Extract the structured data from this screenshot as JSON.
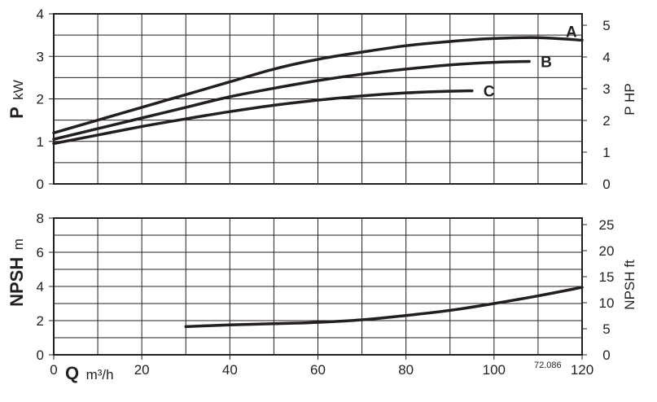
{
  "chart_data": [
    {
      "type": "line",
      "ylabel_bold": "P",
      "ylabel_unit": "kW",
      "y2label": "P HP",
      "xlim": [
        0,
        120
      ],
      "ylim": [
        0,
        4
      ],
      "y2lim": [
        0,
        5.36
      ],
      "y_ticks": [
        "0",
        "1",
        "2",
        "3",
        "4"
      ],
      "y2_ticks": [
        "0",
        "1",
        "2",
        "3",
        "4",
        "5"
      ],
      "grid": true,
      "series": [
        {
          "name": "A",
          "x": [
            0,
            10,
            20,
            30,
            40,
            50,
            60,
            70,
            80,
            90,
            100,
            110,
            120
          ],
          "y": [
            1.2,
            1.5,
            1.8,
            2.1,
            2.4,
            2.7,
            2.93,
            3.1,
            3.25,
            3.35,
            3.42,
            3.44,
            3.38
          ]
        },
        {
          "name": "B",
          "x": [
            0,
            10,
            20,
            30,
            40,
            50,
            60,
            70,
            80,
            90,
            100,
            108
          ],
          "y": [
            1.05,
            1.3,
            1.55,
            1.8,
            2.05,
            2.25,
            2.43,
            2.58,
            2.7,
            2.8,
            2.86,
            2.88
          ]
        },
        {
          "name": "C",
          "x": [
            0,
            10,
            20,
            30,
            40,
            50,
            60,
            70,
            80,
            90,
            95
          ],
          "y": [
            0.95,
            1.15,
            1.35,
            1.53,
            1.7,
            1.85,
            1.97,
            2.07,
            2.14,
            2.18,
            2.19
          ]
        }
      ]
    },
    {
      "type": "line",
      "ylabel_bold": "NPSH",
      "ylabel_unit": "m",
      "y2label": "NPSH ft",
      "xlabel_bold": "Q",
      "xlabel_unit": "m³/h",
      "xlim": [
        0,
        120
      ],
      "ylim": [
        0,
        8
      ],
      "y2lim": [
        0,
        26.25
      ],
      "x_ticks": [
        "0",
        "20",
        "40",
        "60",
        "80",
        "100",
        "120"
      ],
      "y_ticks": [
        "0",
        "2",
        "4",
        "6",
        "8"
      ],
      "y2_ticks": [
        "0",
        "5",
        "10",
        "15",
        "20",
        "25"
      ],
      "grid": true,
      "series": [
        {
          "x": [
            30,
            40,
            50,
            60,
            70,
            80,
            90,
            100,
            110,
            120
          ],
          "y": [
            1.65,
            1.75,
            1.82,
            1.9,
            2.05,
            2.3,
            2.6,
            3.0,
            3.45,
            3.95
          ]
        }
      ]
    }
  ],
  "reference_code": "72.086"
}
